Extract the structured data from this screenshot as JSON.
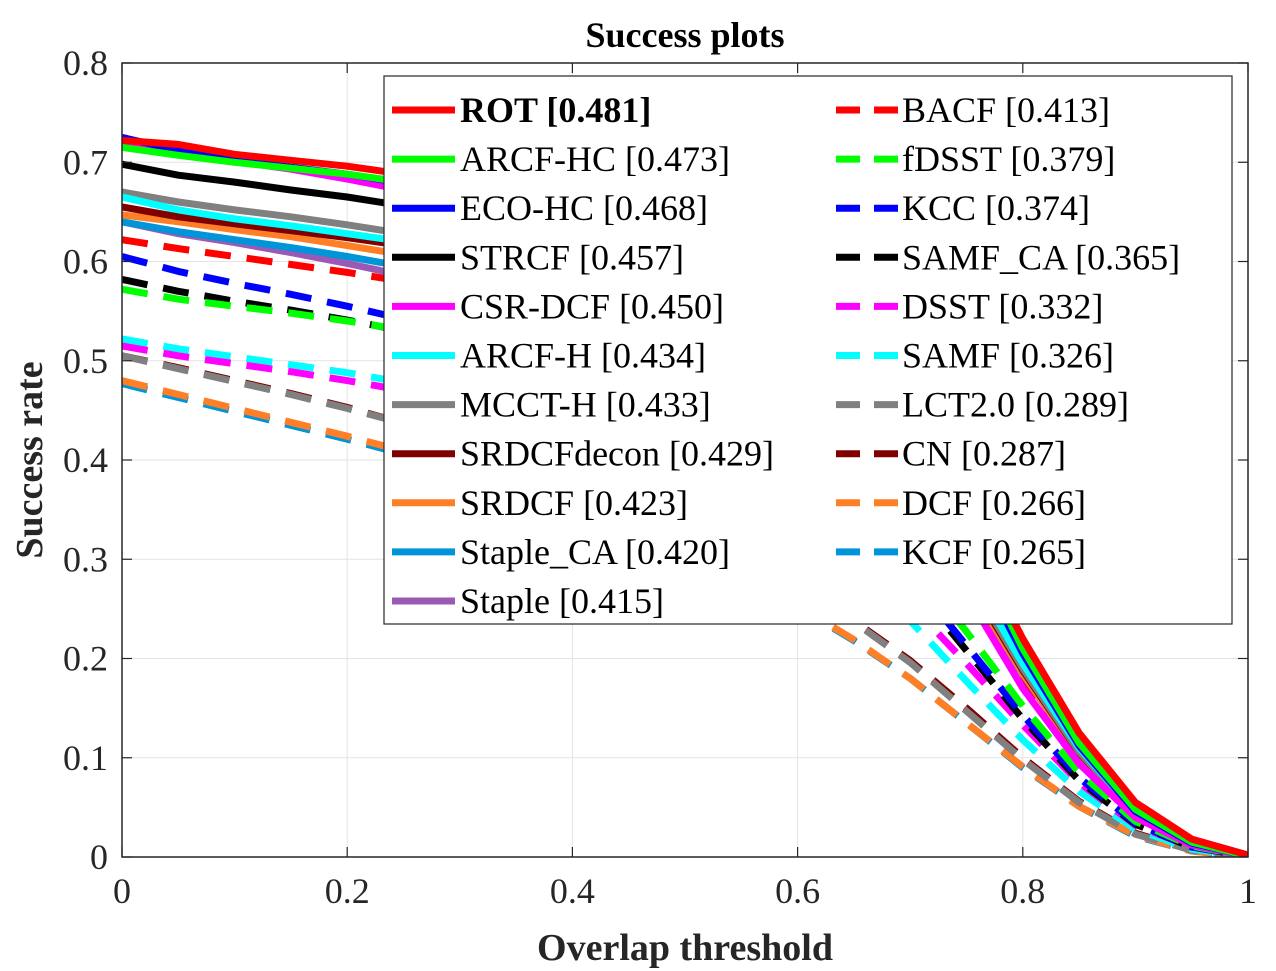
{
  "chart_data": {
    "type": "line",
    "title": "Success plots",
    "xlabel": "Overlap threshold",
    "ylabel": "Success rate",
    "xlim": [
      0,
      1
    ],
    "ylim": [
      0,
      0.8
    ],
    "grid": true,
    "legend_position": "top-right",
    "x_ticks": [
      "0",
      "0.2",
      "0.4",
      "0.6",
      "0.8",
      "1"
    ],
    "y_ticks": [
      "0",
      "0.1",
      "0.2",
      "0.3",
      "0.4",
      "0.5",
      "0.6",
      "0.7",
      "0.8"
    ],
    "x": [
      0,
      0.05,
      0.1,
      0.15,
      0.2,
      0.25,
      0.3,
      0.35,
      0.4,
      0.45,
      0.5,
      0.55,
      0.6,
      0.65,
      0.7,
      0.75,
      0.8,
      0.85,
      0.9,
      0.95,
      1.0
    ],
    "series": [
      {
        "name": "ROT [0.481]",
        "color": "#ff0000",
        "dash": false,
        "bold": true,
        "values": [
          0.722,
          0.718,
          0.708,
          0.702,
          0.696,
          0.688,
          0.68,
          0.67,
          0.658,
          0.643,
          0.625,
          0.6,
          0.565,
          0.515,
          0.44,
          0.33,
          0.22,
          0.125,
          0.055,
          0.018,
          0.002
        ]
      },
      {
        "name": "ARCF-HC [0.473]",
        "color": "#00ff00",
        "dash": false,
        "values": [
          0.715,
          0.707,
          0.7,
          0.694,
          0.688,
          0.68,
          0.672,
          0.663,
          0.652,
          0.638,
          0.62,
          0.595,
          0.56,
          0.51,
          0.435,
          0.325,
          0.21,
          0.115,
          0.048,
          0.015,
          0.001
        ]
      },
      {
        "name": "ECO-HC [0.468]",
        "color": "#0000ff",
        "dash": false,
        "values": [
          0.725,
          0.712,
          0.702,
          0.695,
          0.688,
          0.679,
          0.67,
          0.66,
          0.648,
          0.633,
          0.614,
          0.588,
          0.552,
          0.5,
          0.425,
          0.315,
          0.205,
          0.112,
          0.046,
          0.014,
          0.001
        ]
      },
      {
        "name": "STRCF [0.457]",
        "color": "#000000",
        "dash": false,
        "values": [
          0.698,
          0.687,
          0.68,
          0.672,
          0.665,
          0.656,
          0.647,
          0.637,
          0.625,
          0.611,
          0.594,
          0.57,
          0.538,
          0.492,
          0.422,
          0.318,
          0.215,
          0.122,
          0.052,
          0.016,
          0.001
        ]
      },
      {
        "name": "CSR-DCF [0.450]",
        "color": "#ff00ff",
        "dash": false,
        "values": [
          0.72,
          0.71,
          0.701,
          0.693,
          0.683,
          0.672,
          0.66,
          0.645,
          0.628,
          0.606,
          0.579,
          0.545,
          0.5,
          0.44,
          0.362,
          0.265,
          0.17,
          0.094,
          0.04,
          0.012,
          0.001
        ]
      },
      {
        "name": "ARCF-H [0.434]",
        "color": "#00ffff",
        "dash": false,
        "values": [
          0.665,
          0.652,
          0.643,
          0.636,
          0.628,
          0.62,
          0.611,
          0.6,
          0.588,
          0.573,
          0.555,
          0.532,
          0.5,
          0.455,
          0.39,
          0.292,
          0.195,
          0.11,
          0.046,
          0.014,
          0.001
        ]
      },
      {
        "name": "MCCT-H [0.433]",
        "color": "#808080",
        "dash": false,
        "values": [
          0.67,
          0.66,
          0.652,
          0.645,
          0.637,
          0.628,
          0.618,
          0.606,
          0.592,
          0.575,
          0.554,
          0.526,
          0.49,
          0.443,
          0.378,
          0.285,
          0.19,
          0.106,
          0.044,
          0.013,
          0.001
        ]
      },
      {
        "name": "SRDCFdecon [0.429]",
        "color": "#800000",
        "dash": false,
        "values": [
          0.655,
          0.645,
          0.638,
          0.631,
          0.624,
          0.616,
          0.607,
          0.596,
          0.583,
          0.567,
          0.547,
          0.521,
          0.487,
          0.44,
          0.375,
          0.282,
          0.188,
          0.105,
          0.044,
          0.013,
          0.001
        ]
      },
      {
        "name": "SRDCF [0.423]",
        "color": "#ff7f27",
        "dash": false,
        "values": [
          0.647,
          0.64,
          0.632,
          0.625,
          0.616,
          0.607,
          0.597,
          0.585,
          0.571,
          0.555,
          0.534,
          0.508,
          0.475,
          0.43,
          0.367,
          0.277,
          0.185,
          0.103,
          0.043,
          0.013,
          0.001
        ]
      },
      {
        "name": "Staple_CA [0.420]",
        "color": "#0094d9",
        "dash": false,
        "values": [
          0.64,
          0.63,
          0.622,
          0.614,
          0.605,
          0.595,
          0.584,
          0.572,
          0.558,
          0.541,
          0.521,
          0.496,
          0.464,
          0.421,
          0.361,
          0.275,
          0.185,
          0.104,
          0.044,
          0.013,
          0.001
        ]
      },
      {
        "name": "Staple [0.415]",
        "color": "#9b59b6",
        "dash": false,
        "values": [
          0.64,
          0.628,
          0.619,
          0.609,
          0.598,
          0.586,
          0.574,
          0.561,
          0.546,
          0.529,
          0.509,
          0.484,
          0.453,
          0.412,
          0.355,
          0.272,
          0.184,
          0.103,
          0.043,
          0.013,
          0.001
        ]
      },
      {
        "name": "BACF [0.413]",
        "color": "#ff0000",
        "dash": true,
        "values": [
          0.622,
          0.613,
          0.605,
          0.597,
          0.589,
          0.58,
          0.569,
          0.556,
          0.541,
          0.523,
          0.502,
          0.476,
          0.444,
          0.402,
          0.346,
          0.265,
          0.18,
          0.101,
          0.042,
          0.013,
          0.001
        ]
      },
      {
        "name": "fDSST [0.379]",
        "color": "#00ff00",
        "dash": true,
        "values": [
          0.572,
          0.562,
          0.555,
          0.548,
          0.54,
          0.531,
          0.52,
          0.507,
          0.491,
          0.472,
          0.45,
          0.423,
          0.39,
          0.35,
          0.298,
          0.227,
          0.152,
          0.085,
          0.036,
          0.011,
          0.001
        ]
      },
      {
        "name": "KCC [0.374]",
        "color": "#0000ff",
        "dash": true,
        "values": [
          0.605,
          0.59,
          0.578,
          0.567,
          0.555,
          0.542,
          0.528,
          0.512,
          0.493,
          0.471,
          0.446,
          0.416,
          0.381,
          0.337,
          0.283,
          0.213,
          0.143,
          0.08,
          0.034,
          0.01,
          0.001
        ]
      },
      {
        "name": "SAMF_CA [0.365]",
        "color": "#000000",
        "dash": true,
        "values": [
          0.582,
          0.57,
          0.56,
          0.551,
          0.541,
          0.53,
          0.517,
          0.502,
          0.485,
          0.464,
          0.44,
          0.411,
          0.376,
          0.331,
          0.277,
          0.208,
          0.139,
          0.077,
          0.033,
          0.01,
          0.001
        ]
      },
      {
        "name": "DSST [0.332]",
        "color": "#ff00ff",
        "dash": true,
        "values": [
          0.515,
          0.505,
          0.497,
          0.489,
          0.48,
          0.47,
          0.458,
          0.444,
          0.428,
          0.41,
          0.389,
          0.365,
          0.336,
          0.3,
          0.255,
          0.195,
          0.133,
          0.075,
          0.032,
          0.01,
          0.001
        ]
      },
      {
        "name": "SAMF [0.326]",
        "color": "#00ffff",
        "dash": true,
        "values": [
          0.522,
          0.512,
          0.504,
          0.496,
          0.488,
          0.478,
          0.466,
          0.451,
          0.433,
          0.412,
          0.388,
          0.36,
          0.327,
          0.287,
          0.238,
          0.177,
          0.118,
          0.066,
          0.028,
          0.008,
          0.001
        ]
      },
      {
        "name": "LCT2.0 [0.289]",
        "color": "#808080",
        "dash": true,
        "values": [
          0.505,
          0.492,
          0.479,
          0.466,
          0.452,
          0.437,
          0.42,
          0.401,
          0.38,
          0.357,
          0.331,
          0.303,
          0.272,
          0.237,
          0.196,
          0.147,
          0.098,
          0.055,
          0.023,
          0.007,
          0.0
        ]
      },
      {
        "name": "CN [0.287]",
        "color": "#800000",
        "dash": true,
        "values": [
          0.505,
          0.493,
          0.48,
          0.467,
          0.453,
          0.437,
          0.42,
          0.401,
          0.38,
          0.357,
          0.332,
          0.304,
          0.273,
          0.238,
          0.198,
          0.15,
          0.1,
          0.056,
          0.024,
          0.007,
          0.0
        ]
      },
      {
        "name": "DCF [0.266]",
        "color": "#ff7f27",
        "dash": true,
        "values": [
          0.48,
          0.466,
          0.452,
          0.438,
          0.424,
          0.409,
          0.393,
          0.375,
          0.356,
          0.334,
          0.31,
          0.283,
          0.253,
          0.219,
          0.18,
          0.135,
          0.091,
          0.051,
          0.022,
          0.006,
          0.0
        ]
      },
      {
        "name": "KCF [0.265]",
        "color": "#0094d9",
        "dash": true,
        "values": [
          0.477,
          0.463,
          0.449,
          0.435,
          0.421,
          0.406,
          0.39,
          0.373,
          0.354,
          0.333,
          0.309,
          0.282,
          0.252,
          0.218,
          0.18,
          0.135,
          0.09,
          0.051,
          0.021,
          0.006,
          0.0
        ]
      }
    ]
  }
}
